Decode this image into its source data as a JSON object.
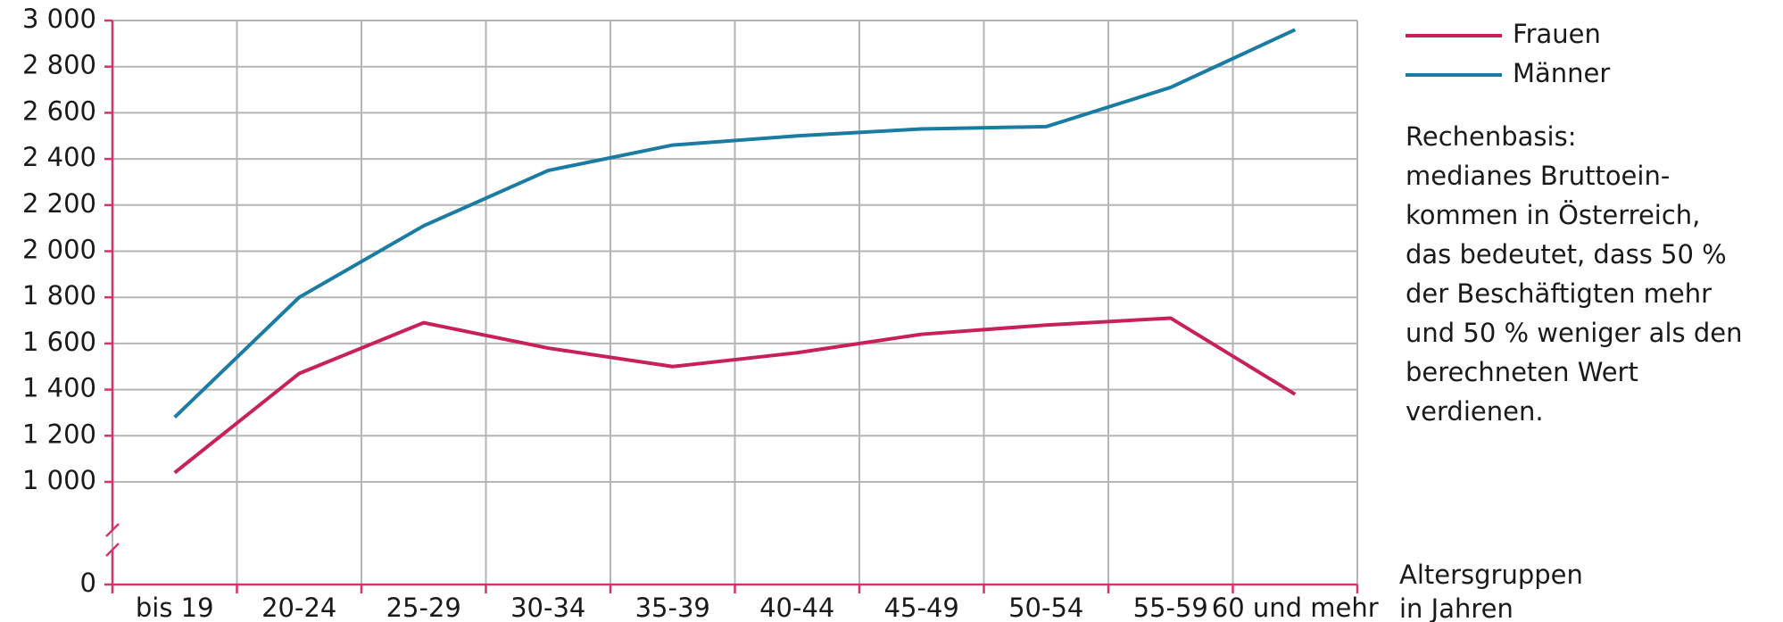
{
  "chart_data": {
    "type": "line",
    "categories": [
      "bis 19",
      "20-24",
      "25-29",
      "30-34",
      "35-39",
      "40-44",
      "45-49",
      "50-54",
      "55-59",
      "60 und mehr"
    ],
    "series": [
      {
        "name": "Frauen",
        "color": "#c8205a",
        "values": [
          1040,
          1470,
          1690,
          1580,
          1500,
          1560,
          1640,
          1680,
          1710,
          1380
        ]
      },
      {
        "name": "Männer",
        "color": "#1a7ca3",
        "values": [
          1280,
          1800,
          2110,
          2350,
          2460,
          2500,
          2530,
          2540,
          2710,
          2960
        ]
      }
    ],
    "ylim": [
      0,
      3000
    ],
    "axis_break": [
      0,
      1000
    ],
    "yticks": [
      0,
      {
        "value": 1000,
        "label": "1 000"
      },
      {
        "value": 1200,
        "label": "1 200"
      },
      {
        "value": 1400,
        "label": "1 400"
      },
      {
        "value": 1600,
        "label": "1 600"
      },
      {
        "value": 1800,
        "label": "1 800"
      },
      {
        "value": 2000,
        "label": "2 000"
      },
      {
        "value": 2200,
        "label": "2 200"
      },
      {
        "value": 2400,
        "label": "2 400"
      },
      {
        "value": 2600,
        "label": "2 600"
      },
      {
        "value": 2800,
        "label": "2 800"
      },
      {
        "value": 3000,
        "label": "3 000"
      }
    ],
    "grid": true,
    "axis_color": "#d6336c",
    "xlabel": [
      "Altersgruppen",
      "in Jahren"
    ],
    "note": [
      "Rechenbasis:",
      "medianes Bruttoein-",
      "kommen in Österreich,",
      "das bedeutet, dass 50 %",
      "der Beschäftigten mehr",
      "und 50 % weniger als den",
      "berechneten Wert",
      "verdienen."
    ]
  }
}
